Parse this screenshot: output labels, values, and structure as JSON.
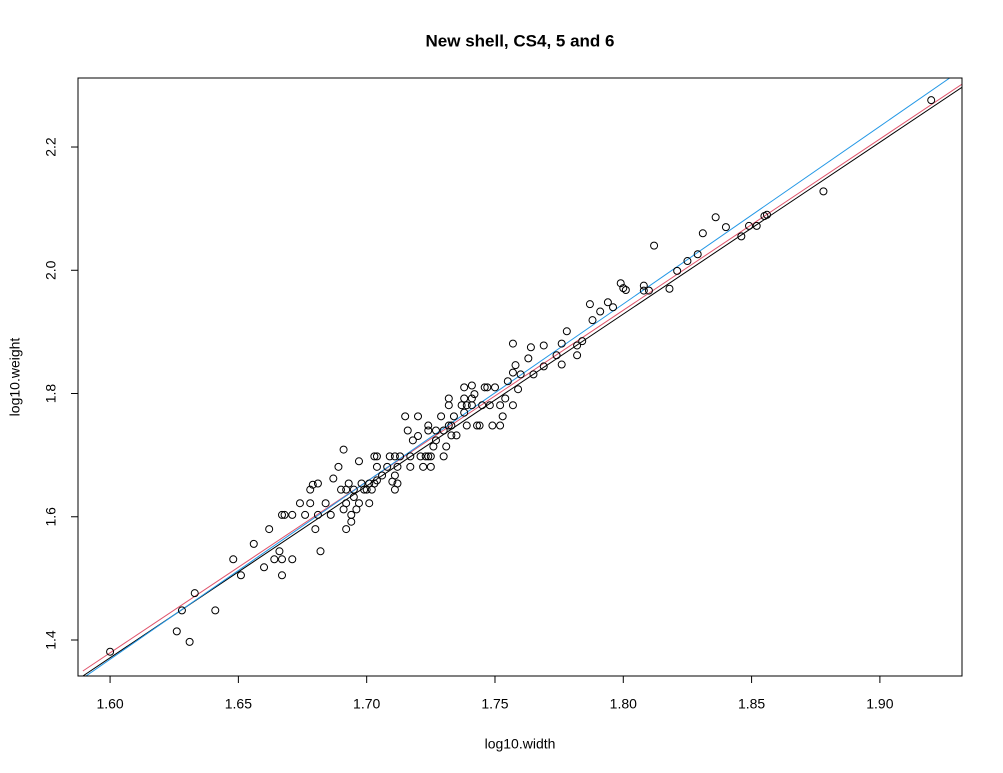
{
  "chart_data": {
    "type": "scatter",
    "title": "New shell, CS4, 5 and 6",
    "x_label": "log10.width",
    "y_label": "log10.weight",
    "xlim": [
      1.5875,
      1.932
    ],
    "ylim": [
      1.3416,
      2.312
    ],
    "xticks": [
      {
        "value": 1.6,
        "label": "1.60"
      },
      {
        "value": 1.65,
        "label": "1.65"
      },
      {
        "value": 1.7,
        "label": "1.70"
      },
      {
        "value": 1.75,
        "label": "1.75"
      },
      {
        "value": 1.8,
        "label": "1.80"
      },
      {
        "value": 1.85,
        "label": "1.85"
      },
      {
        "value": 1.9,
        "label": "1.90"
      }
    ],
    "yticks": [
      1.4,
      1.6,
      1.8,
      {
        "value": 2.0,
        "label": "2.0"
      },
      2.2
    ],
    "points": {
      "color": "#000000",
      "x": [
        1.6,
        1.626,
        1.628,
        1.631,
        1.633,
        1.641,
        1.648,
        1.651,
        1.656,
        1.66,
        1.662,
        1.664,
        1.666,
        1.667,
        1.667,
        1.668,
        1.667,
        1.671,
        1.671,
        1.674,
        1.676,
        1.678,
        1.678,
        1.679,
        1.68,
        1.681,
        1.681,
        1.682,
        1.684,
        1.686,
        1.687,
        1.689,
        1.69,
        1.691,
        1.691,
        1.692,
        1.692,
        1.692,
        1.693,
        1.694,
        1.694,
        1.695,
        1.695,
        1.696,
        1.697,
        1.697,
        1.698,
        1.699,
        1.7,
        1.701,
        1.701,
        1.702,
        1.703,
        1.703,
        1.704,
        1.704,
        1.704,
        1.706,
        1.708,
        1.709,
        1.71,
        1.711,
        1.711,
        1.711,
        1.712,
        1.712,
        1.713,
        1.715,
        1.716,
        1.717,
        1.717,
        1.718,
        1.72,
        1.72,
        1.721,
        1.722,
        1.723,
        1.724,
        1.724,
        1.724,
        1.725,
        1.725,
        1.726,
        1.727,
        1.727,
        1.729,
        1.73,
        1.73,
        1.731,
        1.732,
        1.732,
        1.732,
        1.733,
        1.733,
        1.734,
        1.735,
        1.737,
        1.738,
        1.738,
        1.738,
        1.739,
        1.739,
        1.741,
        1.741,
        1.741,
        1.742,
        1.743,
        1.744,
        1.745,
        1.746,
        1.747,
        1.748,
        1.749,
        1.75,
        1.752,
        1.752,
        1.753,
        1.754,
        1.755,
        1.757,
        1.757,
        1.757,
        1.758,
        1.759,
        1.76,
        1.763,
        1.764,
        1.765,
        1.769,
        1.769,
        1.774,
        1.776,
        1.776,
        1.778,
        1.782,
        1.782,
        1.784,
        1.787,
        1.788,
        1.791,
        1.794,
        1.796,
        1.799,
        1.8,
        1.801,
        1.808,
        1.808,
        1.81,
        1.812,
        1.818,
        1.821,
        1.825,
        1.829,
        1.831,
        1.836,
        1.84,
        1.846,
        1.849,
        1.852,
        1.855,
        1.856,
        1.878,
        1.92
      ],
      "y": [
        1.381,
        1.414,
        1.448,
        1.397,
        1.476,
        1.448,
        1.531,
        1.505,
        1.556,
        1.518,
        1.58,
        1.531,
        1.544,
        1.505,
        1.603,
        1.603,
        1.531,
        1.531,
        1.603,
        1.622,
        1.603,
        1.644,
        1.622,
        1.652,
        1.58,
        1.603,
        1.654,
        1.544,
        1.622,
        1.603,
        1.662,
        1.681,
        1.644,
        1.709,
        1.612,
        1.622,
        1.58,
        1.644,
        1.654,
        1.603,
        1.592,
        1.644,
        1.632,
        1.612,
        1.69,
        1.622,
        1.654,
        1.644,
        1.644,
        1.654,
        1.622,
        1.644,
        1.654,
        1.698,
        1.681,
        1.659,
        1.698,
        1.667,
        1.681,
        1.698,
        1.657,
        1.667,
        1.644,
        1.698,
        1.681,
        1.654,
        1.698,
        1.763,
        1.74,
        1.681,
        1.698,
        1.724,
        1.763,
        1.731,
        1.698,
        1.681,
        1.698,
        1.74,
        1.698,
        1.748,
        1.681,
        1.698,
        1.714,
        1.74,
        1.724,
        1.763,
        1.698,
        1.74,
        1.714,
        1.748,
        1.781,
        1.792,
        1.748,
        1.732,
        1.763,
        1.732,
        1.781,
        1.81,
        1.769,
        1.792,
        1.781,
        1.748,
        1.792,
        1.813,
        1.781,
        1.799,
        1.748,
        1.748,
        1.781,
        1.81,
        1.81,
        1.781,
        1.748,
        1.81,
        1.781,
        1.748,
        1.763,
        1.792,
        1.82,
        1.834,
        1.781,
        1.881,
        1.846,
        1.807,
        1.831,
        1.857,
        1.875,
        1.831,
        1.844,
        1.878,
        1.862,
        1.847,
        1.881,
        1.901,
        1.878,
        1.862,
        1.885,
        1.945,
        1.919,
        1.933,
        1.948,
        1.94,
        1.979,
        1.971,
        1.968,
        1.975,
        1.967,
        1.967,
        2.04,
        1.97,
        1.999,
        2.015,
        2.026,
        2.06,
        2.086,
        2.07,
        2.055,
        2.072,
        2.072,
        2.088,
        2.09,
        2.128,
        2.276
      ]
    },
    "lines": [
      {
        "color": "#000000",
        "x": [
          1.5894,
          1.932
        ],
        "y": [
          1.3416,
          2.297
        ]
      },
      {
        "color": "#df536b",
        "x": [
          1.5894,
          1.932
        ],
        "y": [
          1.3497,
          2.302
        ]
      },
      {
        "color": "#2297e6",
        "x": [
          1.5906,
          1.9272
        ],
        "y": [
          1.3416,
          2.312
        ]
      }
    ]
  }
}
